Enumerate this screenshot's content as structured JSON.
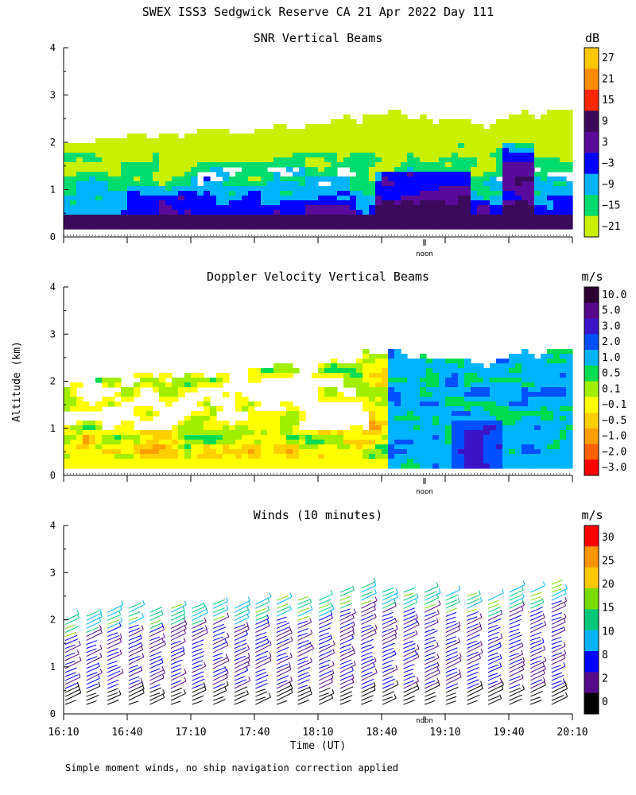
{
  "page": {
    "title": "SWEX ISS3 Sedgwick Reserve CA  21 Apr 2022 Day 111",
    "footnote": "Simple moment winds, no ship navigation correction applied",
    "ylabel": "Altitude (km)",
    "xlabel": "Time (UT)",
    "noon_label": "noon"
  },
  "chart_data": [
    {
      "type": "heatmap",
      "title": "SNR Vertical Beams",
      "ylabel": "Altitude (km)",
      "ylim": [
        0,
        4
      ],
      "yticks": [
        "0",
        "1",
        "2",
        "3",
        "4"
      ],
      "xlim": [
        "16:10",
        "20:10"
      ],
      "colorbar": {
        "unit": "dB",
        "labels": [
          "27",
          "21",
          "15",
          "9",
          "3",
          "−3",
          "−9",
          "−15",
          "−21"
        ],
        "colors": [
          "#ffc800",
          "#ff8c00",
          "#ff2800",
          "#3c0a5a",
          "#5a0a9a",
          "#0000ff",
          "#00b4ff",
          "#00dc6e",
          "#c8f000"
        ]
      }
    },
    {
      "type": "heatmap",
      "title": "Doppler Velocity Vertical Beams",
      "ylabel": "Altitude (km)",
      "ylim": [
        0,
        4
      ],
      "yticks": [
        "0",
        "1",
        "2",
        "3",
        "4"
      ],
      "xlim": [
        "16:10",
        "20:10"
      ],
      "colorbar": {
        "unit": "m/s",
        "labels": [
          "10.0",
          "5.0",
          "3.0",
          "2.0",
          "1.0",
          "0.5",
          "0.1",
          "−0.1",
          "−0.5",
          "−1.0",
          "−2.0",
          "−3.0"
        ],
        "colors": [
          "#2a0030",
          "#55088a",
          "#3c14c8",
          "#0050ff",
          "#00b4ff",
          "#00dc50",
          "#a0ee00",
          "#ffff00",
          "#ffd000",
          "#ffa000",
          "#ff6000",
          "#ff0000"
        ]
      }
    },
    {
      "type": "scatter",
      "title": "Winds (10 minutes)",
      "ylabel": "Altitude (km)",
      "ylim": [
        0,
        4
      ],
      "yticks": [
        "0",
        "1",
        "2",
        "3",
        "4"
      ],
      "xticks": [
        "16:10",
        "16:40",
        "17:10",
        "17:40",
        "18:10",
        "18:40",
        "19:10",
        "19:40",
        "20:10"
      ],
      "colorbar": {
        "unit": "m/s",
        "labels": [
          "30",
          "25",
          "20",
          "15",
          "10",
          "8",
          "2",
          "0"
        ],
        "colors": [
          "#ff0000",
          "#ff9600",
          "#ffc800",
          "#78dc00",
          "#00c878",
          "#00b4ff",
          "#0000ff",
          "#550a8c",
          "#000000"
        ]
      }
    }
  ]
}
